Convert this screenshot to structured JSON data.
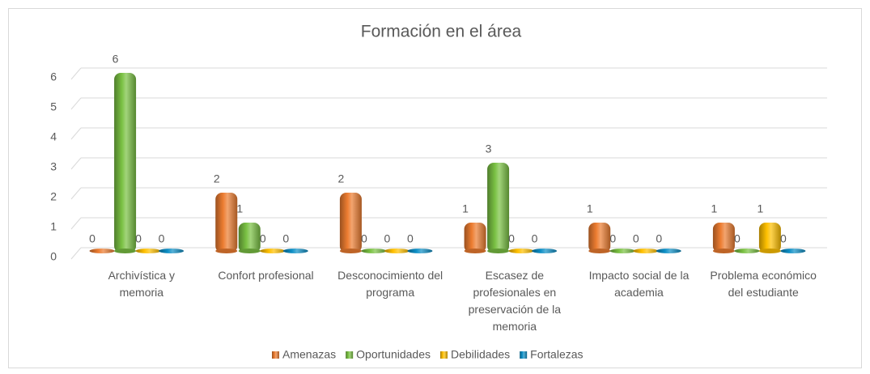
{
  "chart_data": {
    "type": "bar3d",
    "title": "Formación en el área",
    "categories": [
      "Archivística y memoria",
      "Confort profesional",
      "Desconocimiento del programa",
      "Escasez de profesionales en preservación de la memoria",
      "Impacto social de la academia",
      "Problema económico del estudiante"
    ],
    "series": [
      {
        "name": "Amenazas",
        "color": "#ed7d31",
        "values": [
          0,
          2,
          2,
          1,
          1,
          1
        ]
      },
      {
        "name": "Oportunidades",
        "color": "#7ac143",
        "values": [
          6,
          1,
          0,
          3,
          0,
          0
        ]
      },
      {
        "name": "Debilidades",
        "color": "#ffc000",
        "values": [
          0,
          0,
          0,
          0,
          0,
          1
        ]
      },
      {
        "name": "Fortalezas",
        "color": "#0e8fc6",
        "values": [
          0,
          0,
          0,
          0,
          0,
          0
        ]
      }
    ],
    "ylim": [
      0,
      6
    ],
    "yticks": [
      0,
      1,
      2,
      3,
      4,
      5,
      6
    ],
    "grid": true,
    "legend": "bottom"
  }
}
